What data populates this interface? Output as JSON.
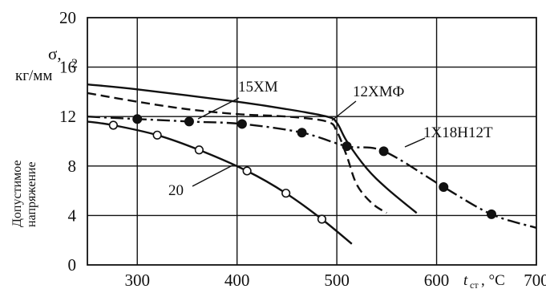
{
  "chart_data": {
    "type": "line",
    "x_axis": {
      "xlim": [
        250,
        700
      ],
      "ticks": [
        "300",
        "400",
        "500",
        "600",
        "700"
      ],
      "label_var": "t",
      "label_sub": "ст",
      "label_unit": ", °С"
    },
    "y_axis": {
      "ylim": [
        0,
        20
      ],
      "ticks": [
        "0",
        "4",
        "8",
        "12",
        "16",
        "20"
      ],
      "symbol": "σ,",
      "unit": "кг/мм",
      "unit_sup": "2",
      "label_lines": [
        "Допустимое",
        "напряжение"
      ]
    },
    "grid": true,
    "series": [
      {
        "name": "15ХМ",
        "style": "solid",
        "marker": "none",
        "points": [
          [
            250,
            14.6
          ],
          [
            300,
            14.2
          ],
          [
            400,
            13.2
          ],
          [
            450,
            12.6
          ],
          [
            490,
            12.0
          ],
          [
            500,
            11.5
          ],
          [
            510,
            10.0
          ],
          [
            530,
            7.8
          ],
          [
            550,
            6.2
          ],
          [
            580,
            4.2
          ]
        ]
      },
      {
        "name": "12ХМФ",
        "style": "dashed",
        "marker": "none",
        "points": [
          [
            250,
            13.9
          ],
          [
            300,
            13.2
          ],
          [
            350,
            12.6
          ],
          [
            400,
            12.2
          ],
          [
            450,
            12.0
          ],
          [
            490,
            11.6
          ],
          [
            500,
            10.8
          ],
          [
            510,
            8.8
          ],
          [
            520,
            6.5
          ],
          [
            535,
            5.0
          ],
          [
            550,
            4.2
          ]
        ]
      },
      {
        "name": "1Х18Н12Т",
        "style": "dash-dot",
        "marker": "filled-circle",
        "points": [
          [
            250,
            12.0
          ],
          [
            300,
            11.8
          ],
          [
            352,
            11.6
          ],
          [
            405,
            11.4
          ],
          [
            465,
            10.7
          ],
          [
            510,
            9.6
          ],
          [
            547,
            9.2
          ],
          [
            607,
            6.3
          ],
          [
            655,
            4.1
          ],
          [
            700,
            3.0
          ]
        ],
        "marked": [
          [
            300,
            11.8
          ],
          [
            352,
            11.6
          ],
          [
            405,
            11.4
          ],
          [
            465,
            10.7
          ],
          [
            510,
            9.6
          ],
          [
            547,
            9.2
          ],
          [
            607,
            6.3
          ],
          [
            655,
            4.1
          ]
        ]
      },
      {
        "name": "20",
        "style": "solid",
        "marker": "open-circle",
        "points": [
          [
            250,
            11.6
          ],
          [
            276,
            11.3
          ],
          [
            320,
            10.5
          ],
          [
            362,
            9.3
          ],
          [
            410,
            7.6
          ],
          [
            449,
            5.8
          ],
          [
            485,
            3.7
          ],
          [
            515,
            1.7
          ]
        ],
        "marked": [
          [
            276,
            11.3
          ],
          [
            320,
            10.5
          ],
          [
            362,
            9.3
          ],
          [
            410,
            7.6
          ],
          [
            449,
            5.8
          ],
          [
            485,
            3.7
          ]
        ]
      }
    ]
  }
}
